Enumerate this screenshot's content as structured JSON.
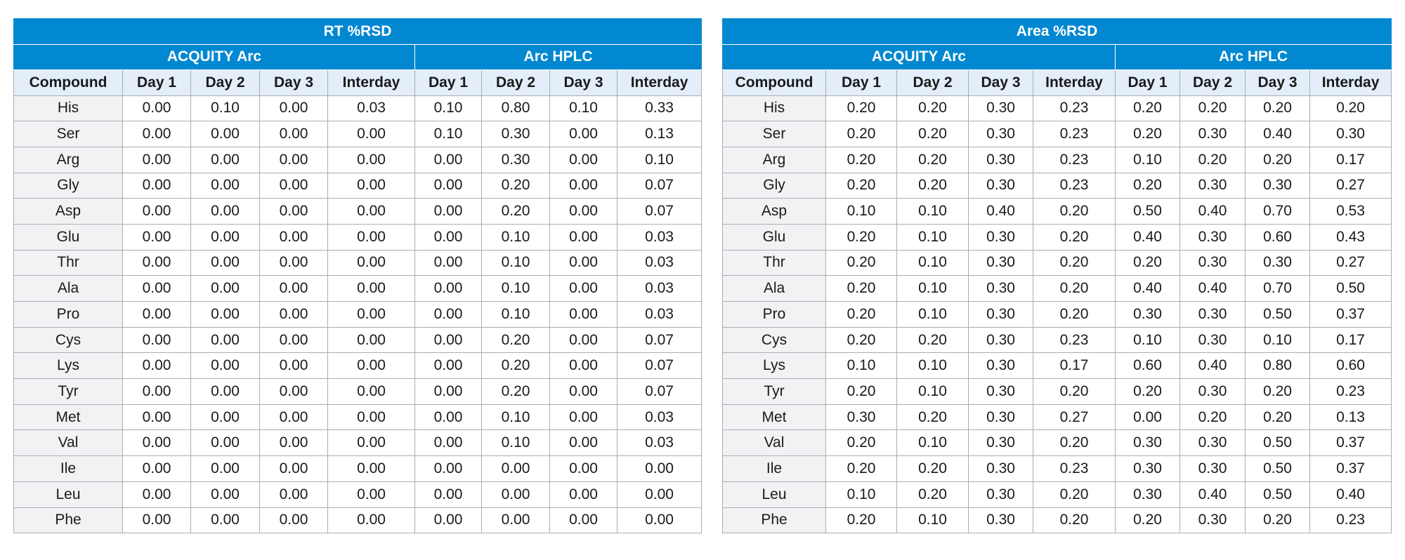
{
  "colors": {
    "header_blue": "#0288d1",
    "subheader_light": "#e3eef9",
    "compound_bg": "#f1f2f4",
    "grid": "#a9acb1"
  },
  "tables": [
    {
      "title": "RT %RSD",
      "groups": [
        "ACQUITY Arc",
        "Arc HPLC"
      ],
      "columns": [
        "Compound",
        "Day 1",
        "Day 2",
        "Day 3",
        "Interday",
        "Day 1",
        "Day 2",
        "Day 3",
        "Interday"
      ],
      "rows": [
        [
          "His",
          "0.00",
          "0.10",
          "0.00",
          "0.03",
          "0.10",
          "0.80",
          "0.10",
          "0.33"
        ],
        [
          "Ser",
          "0.00",
          "0.00",
          "0.00",
          "0.00",
          "0.10",
          "0.30",
          "0.00",
          "0.13"
        ],
        [
          "Arg",
          "0.00",
          "0.00",
          "0.00",
          "0.00",
          "0.00",
          "0.30",
          "0.00",
          "0.10"
        ],
        [
          "Gly",
          "0.00",
          "0.00",
          "0.00",
          "0.00",
          "0.00",
          "0.20",
          "0.00",
          "0.07"
        ],
        [
          "Asp",
          "0.00",
          "0.00",
          "0.00",
          "0.00",
          "0.00",
          "0.20",
          "0.00",
          "0.07"
        ],
        [
          "Glu",
          "0.00",
          "0.00",
          "0.00",
          "0.00",
          "0.00",
          "0.10",
          "0.00",
          "0.03"
        ],
        [
          "Thr",
          "0.00",
          "0.00",
          "0.00",
          "0.00",
          "0.00",
          "0.10",
          "0.00",
          "0.03"
        ],
        [
          "Ala",
          "0.00",
          "0.00",
          "0.00",
          "0.00",
          "0.00",
          "0.10",
          "0.00",
          "0.03"
        ],
        [
          "Pro",
          "0.00",
          "0.00",
          "0.00",
          "0.00",
          "0.00",
          "0.10",
          "0.00",
          "0.03"
        ],
        [
          "Cys",
          "0.00",
          "0.00",
          "0.00",
          "0.00",
          "0.00",
          "0.20",
          "0.00",
          "0.07"
        ],
        [
          "Lys",
          "0.00",
          "0.00",
          "0.00",
          "0.00",
          "0.00",
          "0.20",
          "0.00",
          "0.07"
        ],
        [
          "Tyr",
          "0.00",
          "0.00",
          "0.00",
          "0.00",
          "0.00",
          "0.20",
          "0.00",
          "0.07"
        ],
        [
          "Met",
          "0.00",
          "0.00",
          "0.00",
          "0.00",
          "0.00",
          "0.10",
          "0.00",
          "0.03"
        ],
        [
          "Val",
          "0.00",
          "0.00",
          "0.00",
          "0.00",
          "0.00",
          "0.10",
          "0.00",
          "0.03"
        ],
        [
          "Ile",
          "0.00",
          "0.00",
          "0.00",
          "0.00",
          "0.00",
          "0.00",
          "0.00",
          "0.00"
        ],
        [
          "Leu",
          "0.00",
          "0.00",
          "0.00",
          "0.00",
          "0.00",
          "0.00",
          "0.00",
          "0.00"
        ],
        [
          "Phe",
          "0.00",
          "0.00",
          "0.00",
          "0.00",
          "0.00",
          "0.00",
          "0.00",
          "0.00"
        ]
      ]
    },
    {
      "title": "Area %RSD",
      "groups": [
        "ACQUITY Arc",
        "Arc HPLC"
      ],
      "columns": [
        "Compound",
        "Day 1",
        "Day 2",
        "Day 3",
        "Interday",
        "Day 1",
        "Day 2",
        "Day 3",
        "Interday"
      ],
      "rows": [
        [
          "His",
          "0.20",
          "0.20",
          "0.30",
          "0.23",
          "0.20",
          "0.20",
          "0.20",
          "0.20"
        ],
        [
          "Ser",
          "0.20",
          "0.20",
          "0.30",
          "0.23",
          "0.20",
          "0.30",
          "0.40",
          "0.30"
        ],
        [
          "Arg",
          "0.20",
          "0.20",
          "0.30",
          "0.23",
          "0.10",
          "0.20",
          "0.20",
          "0.17"
        ],
        [
          "Gly",
          "0.20",
          "0.20",
          "0.30",
          "0.23",
          "0.20",
          "0.30",
          "0.30",
          "0.27"
        ],
        [
          "Asp",
          "0.10",
          "0.10",
          "0.40",
          "0.20",
          "0.50",
          "0.40",
          "0.70",
          "0.53"
        ],
        [
          "Glu",
          "0.20",
          "0.10",
          "0.30",
          "0.20",
          "0.40",
          "0.30",
          "0.60",
          "0.43"
        ],
        [
          "Thr",
          "0.20",
          "0.10",
          "0.30",
          "0.20",
          "0.20",
          "0.30",
          "0.30",
          "0.27"
        ],
        [
          "Ala",
          "0.20",
          "0.10",
          "0.30",
          "0.20",
          "0.40",
          "0.40",
          "0.70",
          "0.50"
        ],
        [
          "Pro",
          "0.20",
          "0.10",
          "0.30",
          "0.20",
          "0.30",
          "0.30",
          "0.50",
          "0.37"
        ],
        [
          "Cys",
          "0.20",
          "0.20",
          "0.30",
          "0.23",
          "0.10",
          "0.30",
          "0.10",
          "0.17"
        ],
        [
          "Lys",
          "0.10",
          "0.10",
          "0.30",
          "0.17",
          "0.60",
          "0.40",
          "0.80",
          "0.60"
        ],
        [
          "Tyr",
          "0.20",
          "0.10",
          "0.30",
          "0.20",
          "0.20",
          "0.30",
          "0.20",
          "0.23"
        ],
        [
          "Met",
          "0.30",
          "0.20",
          "0.30",
          "0.27",
          "0.00",
          "0.20",
          "0.20",
          "0.13"
        ],
        [
          "Val",
          "0.20",
          "0.10",
          "0.30",
          "0.20",
          "0.30",
          "0.30",
          "0.50",
          "0.37"
        ],
        [
          "Ile",
          "0.20",
          "0.20",
          "0.30",
          "0.23",
          "0.30",
          "0.30",
          "0.50",
          "0.37"
        ],
        [
          "Leu",
          "0.10",
          "0.20",
          "0.30",
          "0.20",
          "0.30",
          "0.40",
          "0.50",
          "0.40"
        ],
        [
          "Phe",
          "0.20",
          "0.10",
          "0.30",
          "0.20",
          "0.20",
          "0.30",
          "0.20",
          "0.23"
        ]
      ]
    }
  ]
}
